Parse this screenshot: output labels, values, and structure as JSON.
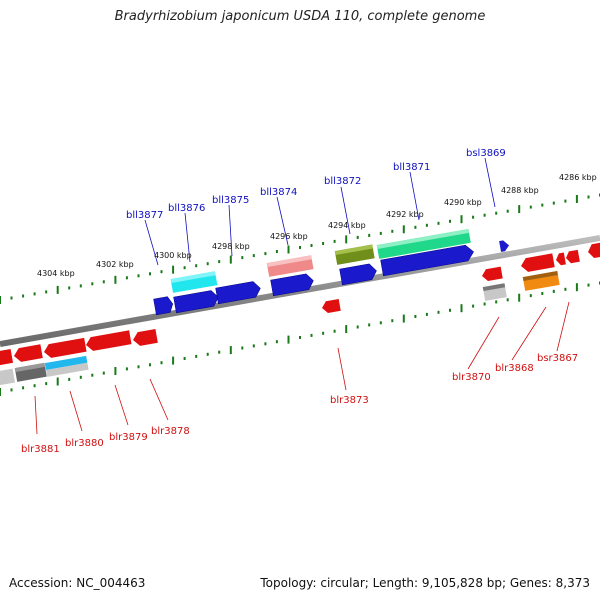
{
  "title": "Bradyrhizobium japonicum USDA 110, complete genome",
  "footer": {
    "accession": "Accession: NC_004463",
    "stats": "Topology: circular; Length: 9,105,828 bp; Genes: 8,373"
  },
  "colors": {
    "top_label": "#1010c0",
    "bottom_label": "#d01010",
    "tick": "#1a7a1a",
    "backbone": "#8a8a8a"
  },
  "ruler_top": [
    "4304 kbp",
    "4302 kbp",
    "4300 kbp",
    "4298 kbp",
    "4296 kbp",
    "4294 kbp",
    "4292 kbp",
    "4290 kbp",
    "4288 kbp",
    "4286 kbp"
  ],
  "genes_top": [
    "bll3877",
    "bll3876",
    "bll3875",
    "bll3874",
    "bll3872",
    "bll3871",
    "bsl3869"
  ],
  "genes_bottom": [
    "blr3881",
    "blr3880",
    "blr3879",
    "blr3878",
    "blr3873",
    "blr3870",
    "blr3868",
    "bsr3867"
  ]
}
